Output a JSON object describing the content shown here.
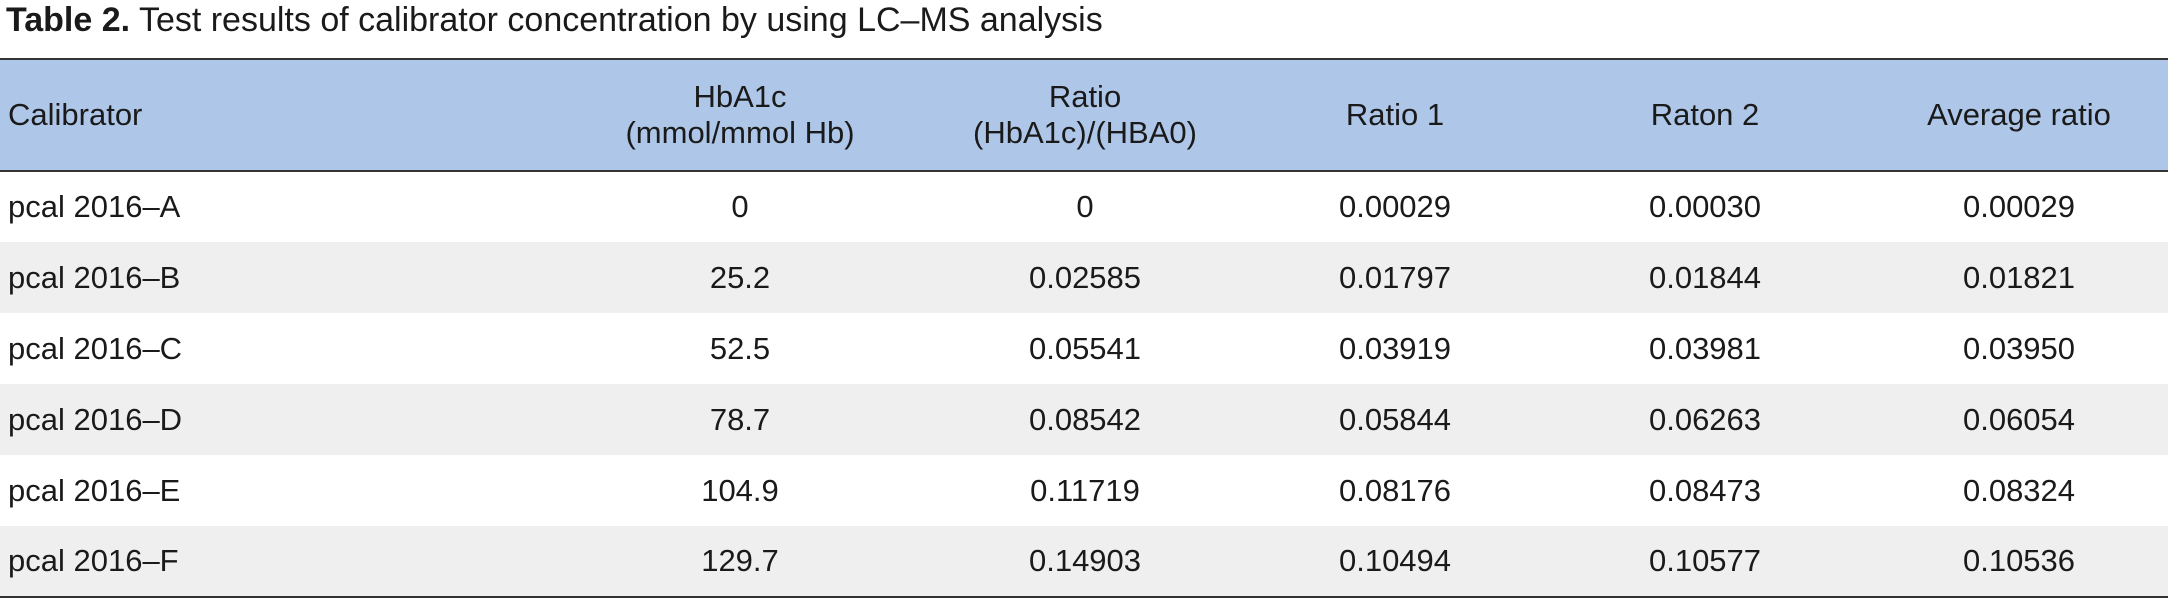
{
  "caption": {
    "label": "Table 2.",
    "text": "Test results of calibrator concentration by using LC–MS analysis"
  },
  "table": {
    "headers": [
      {
        "lines": [
          "Calibrator"
        ]
      },
      {
        "lines": [
          "HbA1c",
          "(mmol/mmol Hb)"
        ]
      },
      {
        "lines": [
          "Ratio",
          "(HbA1c)/(HBA0)"
        ]
      },
      {
        "lines": [
          "Ratio 1"
        ]
      },
      {
        "lines": [
          "Raton 2"
        ]
      },
      {
        "lines": [
          "Average ratio"
        ]
      }
    ],
    "rows": [
      [
        "pcal 2016–A",
        "0",
        "0",
        "0.00029",
        "0.00030",
        "0.00029"
      ],
      [
        "pcal 2016–B",
        "25.2",
        "0.02585",
        "0.01797",
        "0.01844",
        "0.01821"
      ],
      [
        "pcal 2016–C",
        "52.5",
        "0.05541",
        "0.03919",
        "0.03981",
        "0.03950"
      ],
      [
        "pcal 2016–D",
        "78.7",
        "0.08542",
        "0.05844",
        "0.06263",
        "0.06054"
      ],
      [
        "pcal 2016–E",
        "104.9",
        "0.11719",
        "0.08176",
        "0.08473",
        "0.08324"
      ],
      [
        "pcal 2016–F",
        "129.7",
        "0.14903",
        "0.10494",
        "0.10577",
        "0.10536"
      ]
    ]
  },
  "colors": {
    "header_background": "#aec6e8",
    "stripe_background": "#efefef",
    "rule": "#333333"
  }
}
